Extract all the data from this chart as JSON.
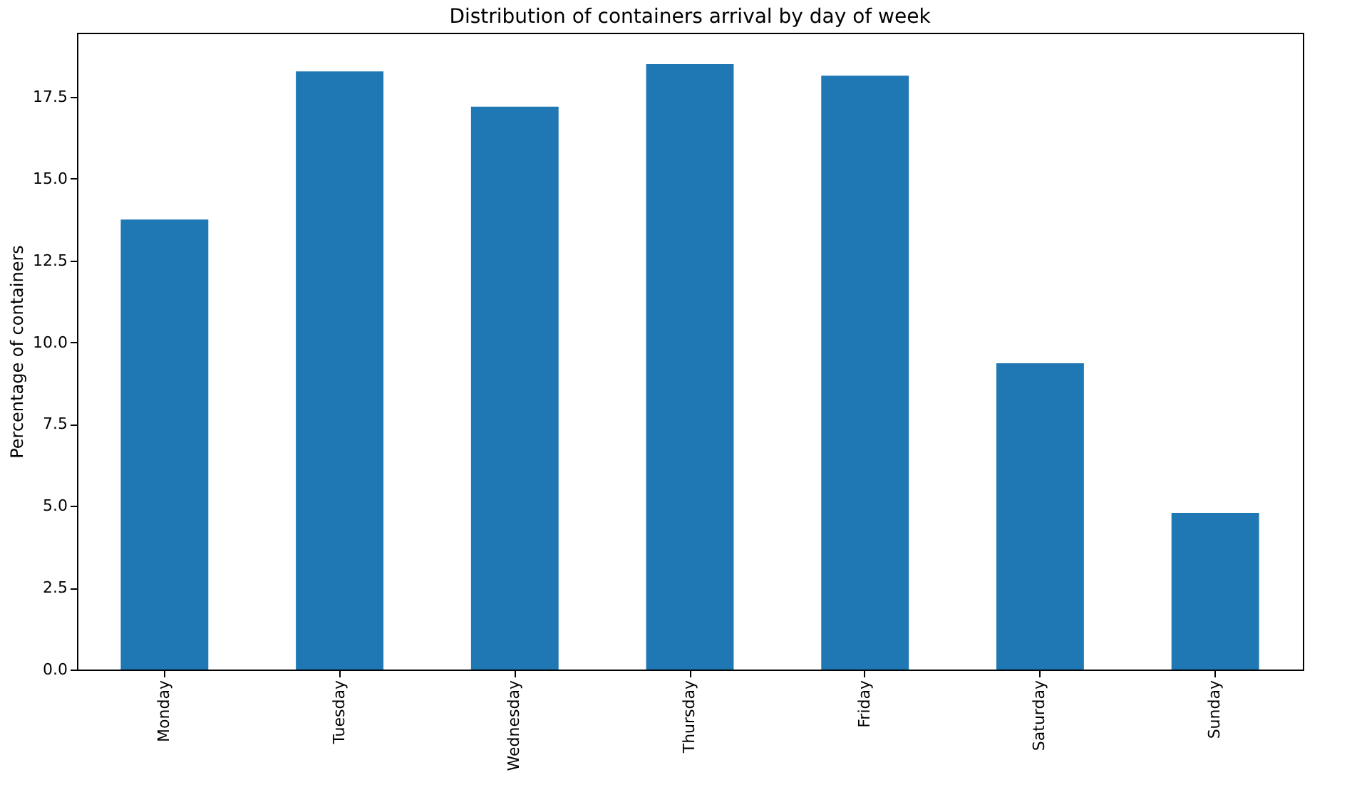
{
  "chart_data": {
    "type": "bar",
    "title": "Distribution of containers arrival by day of week",
    "ylabel": "Percentage of containers",
    "categories": [
      "Monday",
      "Tuesday",
      "Wednesday",
      "Thursday",
      "Friday",
      "Saturday",
      "Sunday"
    ],
    "values": [
      13.75,
      18.28,
      17.2,
      18.5,
      18.15,
      9.36,
      4.79
    ],
    "color": "#1f77b4",
    "ylim": [
      0,
      19.46
    ],
    "yticks": [
      {
        "value": 0,
        "label": "0.0"
      },
      2.5,
      {
        "value": 5,
        "label": "5.0"
      },
      7.5,
      {
        "value": 10,
        "label": "10.0"
      },
      12.5,
      {
        "value": 15,
        "label": "15.0"
      },
      17.5
    ],
    "grid": false
  }
}
